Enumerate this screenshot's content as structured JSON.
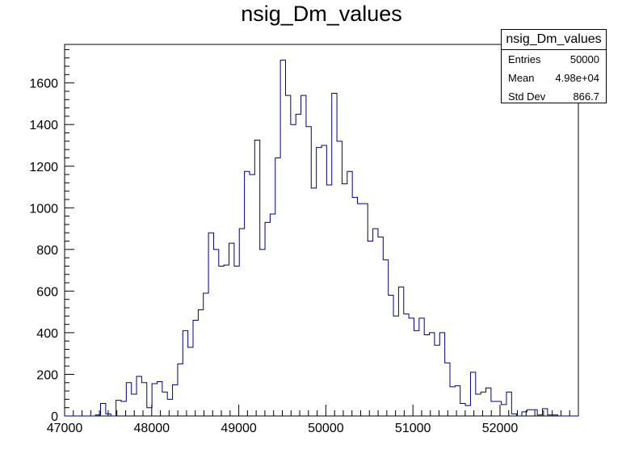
{
  "chart_data": {
    "type": "histogram",
    "title": "nsig_Dm_values",
    "xlabel": "",
    "ylabel": "",
    "xlim": [
      47000,
      52900
    ],
    "ylim": [
      0,
      1785
    ],
    "x_ticks": [
      47000,
      48000,
      49000,
      50000,
      51000,
      52000
    ],
    "y_ticks": [
      0,
      200,
      400,
      600,
      800,
      1000,
      1200,
      1400,
      1600
    ],
    "grid": false,
    "line_color": "#000080",
    "bin_edges_start": 47000,
    "bin_width": 59,
    "counts": [
      0,
      0,
      0,
      0,
      0,
      0,
      5,
      60,
      10,
      0,
      75,
      70,
      160,
      105,
      190,
      160,
      40,
      155,
      165,
      115,
      80,
      150,
      250,
      410,
      330,
      460,
      510,
      590,
      880,
      800,
      720,
      725,
      830,
      720,
      900,
      1175,
      1160,
      1325,
      800,
      930,
      970,
      1240,
      1710,
      1540,
      1400,
      1450,
      1540,
      1390,
      1095,
      1290,
      1300,
      1110,
      1550,
      1320,
      1115,
      1175,
      1050,
      1020,
      1020,
      840,
      900,
      860,
      750,
      580,
      480,
      620,
      490,
      470,
      410,
      470,
      390,
      400,
      340,
      400,
      255,
      140,
      145,
      60,
      50,
      210,
      105,
      115,
      135,
      70,
      70,
      55,
      115,
      10,
      0,
      20,
      30,
      30,
      5,
      35,
      5,
      5,
      0,
      0,
      0,
      0
    ]
  },
  "stats": {
    "title": "nsig_Dm_values",
    "rows": [
      {
        "label": "Entries",
        "value": "50000"
      },
      {
        "label": "Mean",
        "value": "4.98e+04"
      },
      {
        "label": "Std Dev",
        "value": "866.7"
      }
    ]
  }
}
